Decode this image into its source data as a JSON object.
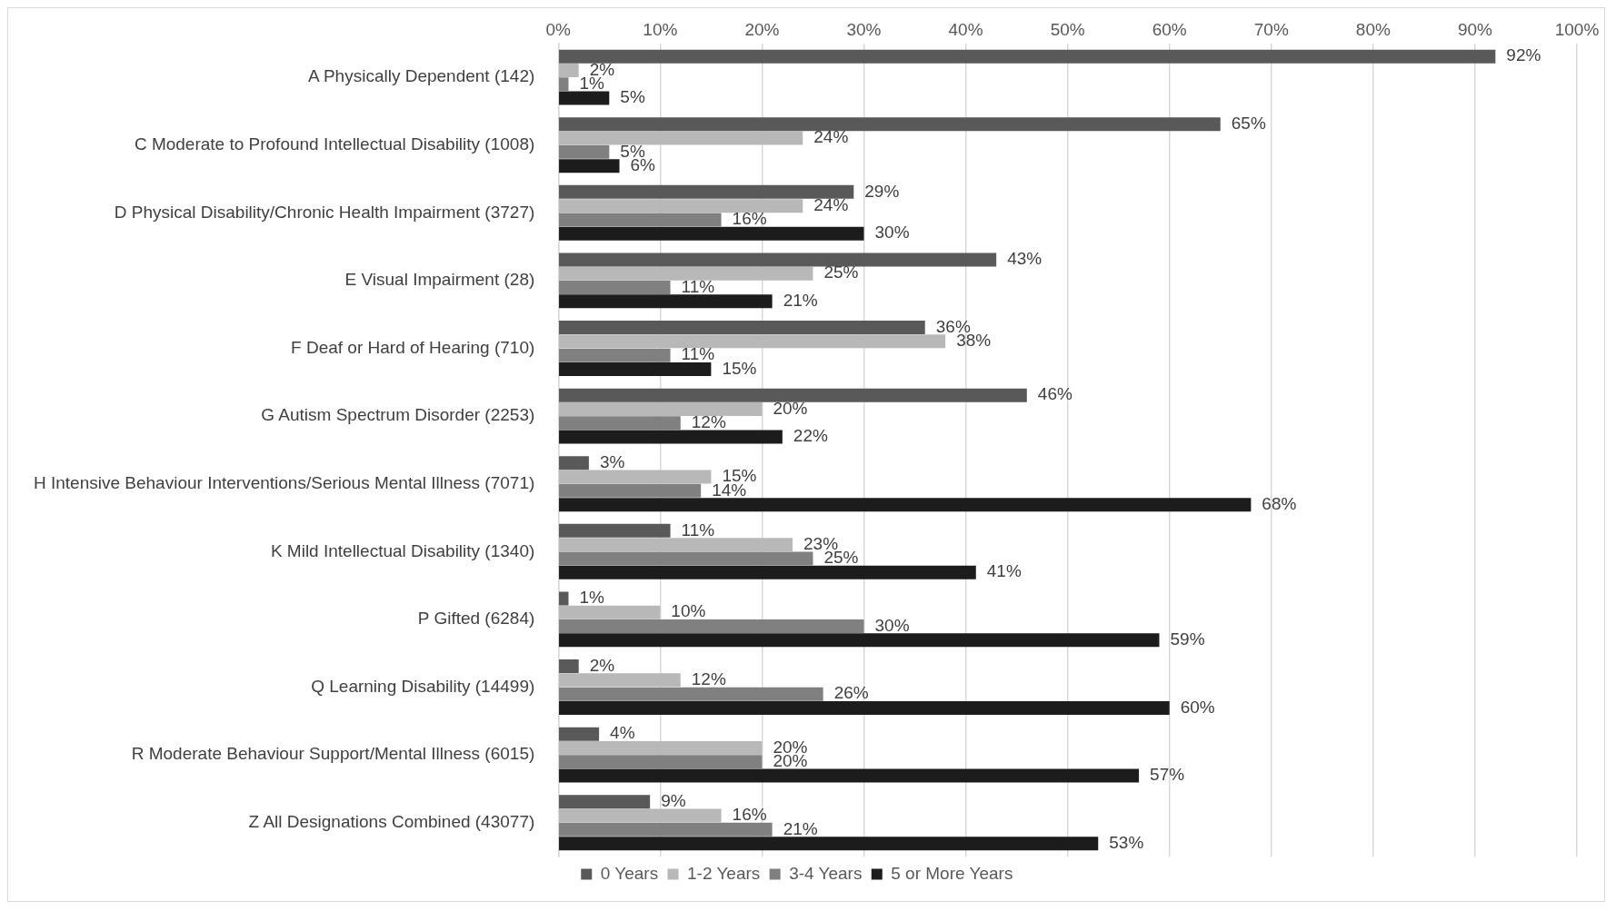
{
  "chart_data": {
    "type": "bar",
    "orientation": "horizontal",
    "categories": [
      "A Physically Dependent (142)",
      "C Moderate to Profound Intellectual Disability (1008)",
      "D Physical Disability/Chronic Health Impairment (3727)",
      "E Visual Impairment (28)",
      "F Deaf or Hard of Hearing (710)",
      "G Autism Spectrum Disorder (2253)",
      "H Intensive Behaviour Interventions/Serious Mental Illness (7071)",
      "K Mild Intellectual Disability (1340)",
      "P Gifted (6284)",
      "Q Learning Disability (14499)",
      "R Moderate Behaviour Support/Mental Illness (6015)",
      "Z All Designations Combined (43077)"
    ],
    "series": [
      {
        "name": "0 Years",
        "color": "#595959",
        "values": [
          92,
          65,
          29,
          43,
          36,
          46,
          3,
          11,
          1,
          2,
          4,
          9
        ],
        "value_labels": [
          "92%",
          "65%",
          "29%",
          "43%",
          "36%",
          "46%",
          "3%",
          "11%",
          "1%",
          "2%",
          "4%",
          "9%"
        ]
      },
      {
        "name": "1-2 Years",
        "color": "#b8b8b8",
        "values": [
          2,
          24,
          24,
          25,
          38,
          20,
          15,
          23,
          10,
          12,
          20,
          16
        ],
        "value_labels": [
          "2%",
          "24%",
          "24%",
          "25%",
          "38%",
          "20%",
          "15%",
          "23%",
          "10%",
          "12%",
          "20%",
          "16%"
        ]
      },
      {
        "name": "3-4 Years",
        "color": "#808080",
        "values": [
          1,
          5,
          16,
          11,
          11,
          12,
          14,
          25,
          30,
          26,
          20,
          21
        ],
        "value_labels": [
          "1%",
          "5%",
          "16%",
          "11%",
          "11%",
          "12%",
          "14%",
          "25%",
          "30%",
          "26%",
          "20%",
          "21%"
        ]
      },
      {
        "name": "5 or More Years",
        "color": "#1c1c1c",
        "values": [
          5,
          6,
          30,
          21,
          15,
          22,
          68,
          41,
          59,
          60,
          57,
          53
        ],
        "value_labels": [
          "5%",
          "6%",
          "30%",
          "21%",
          "15%",
          "22%",
          "68%",
          "41%",
          "59%",
          "60%",
          "57%",
          "53%"
        ]
      }
    ],
    "xlim": [
      0,
      100
    ],
    "xticks": [
      {
        "value": 0,
        "label": "0%"
      },
      {
        "value": 10,
        "label": "10%"
      },
      {
        "value": 20,
        "label": "20%"
      },
      {
        "value": 30,
        "label": "30%"
      },
      {
        "value": 40,
        "label": "40%"
      },
      {
        "value": 50,
        "label": "50%"
      },
      {
        "value": 60,
        "label": "60%"
      },
      {
        "value": 70,
        "label": "70%"
      },
      {
        "value": 80,
        "label": "80%"
      },
      {
        "value": 90,
        "label": "90%"
      },
      {
        "value": 100,
        "label": "100%"
      }
    ],
    "grid": "x",
    "legend": "bottom"
  }
}
